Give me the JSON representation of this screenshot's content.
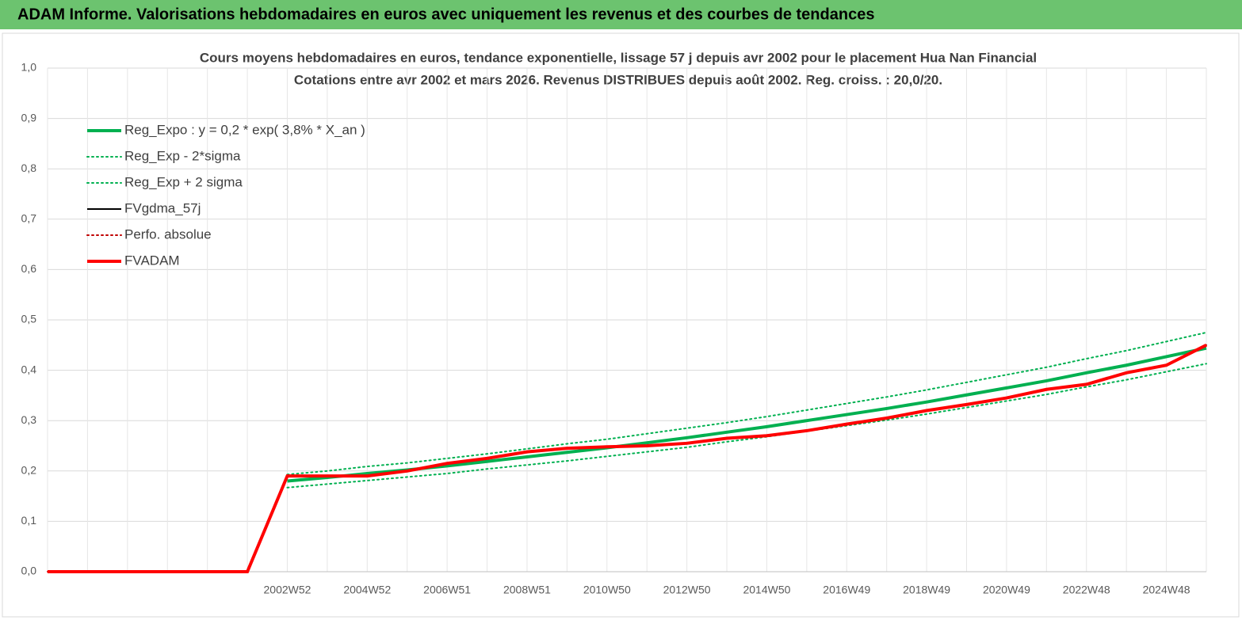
{
  "header": {
    "title": "ADAM Informe. Valorisations hebdomadaires en euros avec uniquement les revenus et des courbes de tendances"
  },
  "chart_data": {
    "type": "line",
    "title": "Cours moyens hebdomadaires en euros, tendance exponentielle, lissage 57 j depuis avr 2002 pour le placement Hua Nan Financial",
    "subtitle": "Cotations entre avr 2002 et mars 2026. Revenus DISTRIBUES depuis août 2002. Reg. croiss. : 20,0/20.",
    "categories": [
      null,
      null,
      null,
      null,
      null,
      null,
      "2002W52",
      null,
      "2004W52",
      null,
      "2006W51",
      null,
      "2008W51",
      null,
      "2010W50",
      null,
      "2012W50",
      null,
      "2014W50",
      null,
      "2016W49",
      null,
      "2018W49",
      null,
      "2020W49",
      null,
      "2022W48",
      null,
      "2024W48",
      null
    ],
    "ylim": [
      0,
      1
    ],
    "yticks": [
      {
        "value": 0,
        "label": "0,0"
      },
      {
        "value": 0.1,
        "label": "0,1"
      },
      {
        "value": 0.2,
        "label": "0,2"
      },
      {
        "value": 0.3,
        "label": "0,3"
      },
      {
        "value": 0.4,
        "label": "0,4"
      },
      {
        "value": 0.5,
        "label": "0,5"
      },
      {
        "value": 0.6,
        "label": "0,6"
      },
      {
        "value": 0.7,
        "label": "0,7"
      },
      {
        "value": 0.8,
        "label": "0,8"
      },
      {
        "value": 0.9,
        "label": "0,9"
      },
      {
        "value": 1,
        "label": "1,0"
      }
    ],
    "grid": true,
    "legend": "top-left",
    "series": [
      {
        "name": "Reg_Expo : y = 0,2 * exp( 3,8% *  X_an )",
        "color": "#00b050",
        "style": "solid",
        "bold": true,
        "values": [
          null,
          null,
          null,
          null,
          null,
          null,
          0.18,
          0.187,
          0.195,
          0.202,
          0.21,
          0.219,
          0.228,
          0.237,
          0.246,
          0.256,
          0.266,
          0.277,
          0.288,
          0.3,
          0.312,
          0.324,
          0.337,
          0.351,
          0.365,
          0.379,
          0.395,
          0.41,
          0.427,
          0.444
        ]
      },
      {
        "name": "Reg_Exp - 2*sigma",
        "color": "#00b050",
        "style": "dotted",
        "bold": false,
        "values": [
          null,
          null,
          null,
          null,
          null,
          null,
          0.167,
          0.174,
          0.181,
          0.188,
          0.195,
          0.204,
          0.212,
          0.22,
          0.229,
          0.238,
          0.247,
          0.258,
          0.268,
          0.279,
          0.29,
          0.301,
          0.313,
          0.326,
          0.339,
          0.352,
          0.367,
          0.381,
          0.397,
          0.413
        ]
      },
      {
        "name": "Reg_Exp + 2 sigma",
        "color": "#00b050",
        "style": "dotted",
        "bold": false,
        "values": [
          null,
          null,
          null,
          null,
          null,
          null,
          0.193,
          0.2,
          0.209,
          0.216,
          0.225,
          0.234,
          0.244,
          0.254,
          0.263,
          0.274,
          0.285,
          0.296,
          0.308,
          0.321,
          0.334,
          0.347,
          0.361,
          0.376,
          0.391,
          0.406,
          0.423,
          0.439,
          0.457,
          0.475
        ]
      },
      {
        "name": "FVgdma_57j",
        "color": "#000000",
        "style": "solid",
        "bold": false,
        "values": [
          0,
          0,
          0,
          0,
          0,
          0,
          0.19,
          0.19,
          0.19,
          0.2,
          0.215,
          0.225,
          0.238,
          0.245,
          0.248,
          0.25,
          0.255,
          0.265,
          0.27,
          0.28,
          0.293,
          0.305,
          0.32,
          0.332,
          0.345,
          0.362,
          0.372,
          0.395,
          0.41,
          0.45
        ]
      },
      {
        "name": "Perfo. absolue",
        "color": "#c00000",
        "style": "dotted",
        "bold": false,
        "values": [
          0,
          0,
          0,
          0,
          0,
          0,
          0.19,
          0.19,
          0.19,
          0.2,
          0.215,
          0.225,
          0.238,
          0.245,
          0.248,
          0.25,
          0.255,
          0.265,
          0.27,
          0.28,
          0.293,
          0.305,
          0.32,
          0.332,
          0.345,
          0.362,
          0.372,
          0.395,
          0.41,
          0.45
        ]
      },
      {
        "name": "FVADAM",
        "color": "#ff0000",
        "style": "solid",
        "bold": true,
        "values": [
          0,
          0,
          0,
          0,
          0,
          0,
          0.19,
          0.19,
          0.19,
          0.2,
          0.215,
          0.225,
          0.238,
          0.245,
          0.248,
          0.25,
          0.255,
          0.265,
          0.27,
          0.28,
          0.293,
          0.305,
          0.32,
          0.332,
          0.345,
          0.362,
          0.372,
          0.395,
          0.41,
          0.45
        ]
      }
    ]
  }
}
